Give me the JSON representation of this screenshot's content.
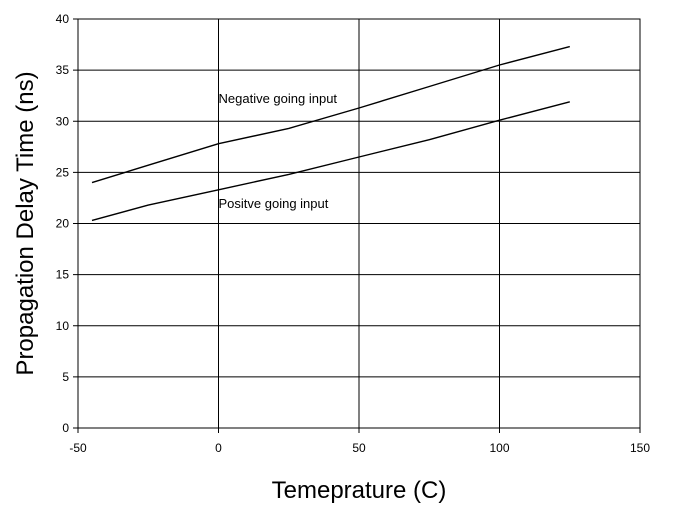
{
  "chart_data": {
    "type": "line",
    "title": "",
    "xlabel": "Temeprature (C)",
    "ylabel": "Propagation Delay Time (ns)",
    "xlim": [
      -50,
      150
    ],
    "ylim": [
      0,
      40
    ],
    "x_ticks": [
      -50,
      0,
      50,
      100,
      150
    ],
    "y_ticks": [
      0,
      5,
      10,
      15,
      20,
      25,
      30,
      35,
      40
    ],
    "grid": true,
    "legend": "none",
    "series": [
      {
        "key": "negative",
        "x": [
          -45,
          -25,
          0,
          25,
          50,
          75,
          100,
          125
        ],
        "values": [
          24.0,
          25.7,
          27.8,
          29.3,
          31.3,
          33.4,
          35.5,
          37.3
        ]
      },
      {
        "key": "positive",
        "x": [
          -45,
          -25,
          0,
          25,
          50,
          75,
          100,
          125
        ],
        "values": [
          20.3,
          21.8,
          23.3,
          24.8,
          26.5,
          28.2,
          30.1,
          31.9
        ]
      }
    ],
    "annotations": [
      {
        "key": "negative",
        "text": "Negative going input",
        "x": 0,
        "y": 31.8
      },
      {
        "key": "positive",
        "text": "Positve going input",
        "x": 0,
        "y": 21.5
      }
    ]
  }
}
